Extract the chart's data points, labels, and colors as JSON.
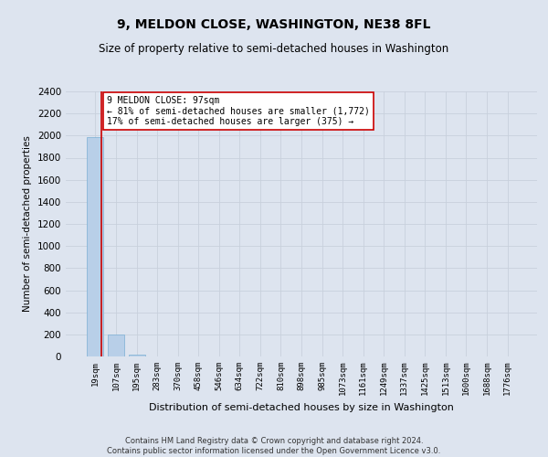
{
  "title": "9, MELDON CLOSE, WASHINGTON, NE38 8FL",
  "subtitle": "Size of property relative to semi-detached houses in Washington",
  "xlabel": "Distribution of semi-detached houses by size in Washington",
  "ylabel": "Number of semi-detached properties",
  "annotation_line1": "9 MELDON CLOSE: 97sqm",
  "annotation_line2": "← 81% of semi-detached houses are smaller (1,772)",
  "annotation_line3": "17% of semi-detached houses are larger (375) →",
  "footer1": "Contains HM Land Registry data © Crown copyright and database right 2024.",
  "footer2": "Contains public sector information licensed under the Open Government Licence v3.0.",
  "bar_color": "#b8cfe8",
  "bar_edge_color": "#7aafd4",
  "grid_color": "#c8d0dc",
  "background_color": "#dde4ef",
  "annotation_box_facecolor": "#ffffff",
  "annotation_box_edge": "#cc0000",
  "redline_color": "#cc0000",
  "categories": [
    "19sqm",
    "107sqm",
    "195sqm",
    "283sqm",
    "370sqm",
    "458sqm",
    "546sqm",
    "634sqm",
    "722sqm",
    "810sqm",
    "898sqm",
    "985sqm",
    "1073sqm",
    "1161sqm",
    "1249sqm",
    "1337sqm",
    "1425sqm",
    "1513sqm",
    "1600sqm",
    "1688sqm",
    "1776sqm"
  ],
  "values": [
    1990,
    197,
    18,
    0,
    0,
    0,
    0,
    0,
    0,
    0,
    0,
    0,
    0,
    0,
    0,
    0,
    0,
    0,
    0,
    0,
    0
  ],
  "ylim": [
    0,
    2400
  ],
  "yticks": [
    0,
    200,
    400,
    600,
    800,
    1000,
    1200,
    1400,
    1600,
    1800,
    2000,
    2200,
    2400
  ],
  "figsize": [
    6.0,
    5.0
  ],
  "dpi": 100
}
